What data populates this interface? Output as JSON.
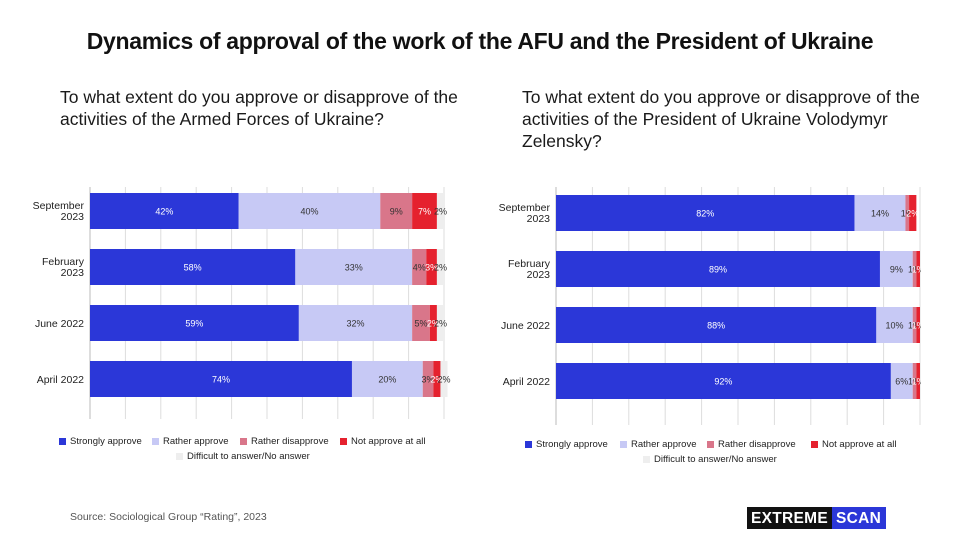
{
  "title": "Dynamics of approval of the work of the AFU and the President of Ukraine",
  "source": "Source: Sociological Group “Rating”, 2023",
  "brand": {
    "part1": "EXTREME",
    "part2": "SCAN"
  },
  "colors": {
    "strongly_approve": "#2b37d8",
    "rather_approve": "#c7c9f5",
    "rather_disapprove": "#d9768a",
    "not_approve": "#e5212e",
    "difficult": "#eeeeee"
  },
  "legend": [
    "Strongly approve",
    "Rather approve",
    "Rather disapprove",
    "Not approve at all",
    "Difficult to answer/No answer"
  ],
  "chart_data": [
    {
      "type": "bar",
      "orientation": "horizontal-stacked",
      "title": "To what extent do you approve or disapprove of the activities of the Armed Forces of Ukraine?",
      "categories": [
        "September 2023",
        "February 2023",
        "June 2022",
        "April 2022"
      ],
      "series": [
        {
          "name": "Strongly approve",
          "values": [
            42,
            58,
            59,
            74
          ]
        },
        {
          "name": "Rather approve",
          "values": [
            40,
            33,
            32,
            20
          ]
        },
        {
          "name": "Rather disapprove",
          "values": [
            9,
            4,
            5,
            3
          ]
        },
        {
          "name": "Not approve at all",
          "values": [
            7,
            3,
            2,
            2
          ]
        },
        {
          "name": "Difficult to answer/No answer",
          "values": [
            2,
            2,
            2,
            2
          ]
        }
      ],
      "unit": "%",
      "grid": true,
      "legend_position": "bottom"
    },
    {
      "type": "bar",
      "orientation": "horizontal-stacked",
      "title": "To what extent do you approve or disapprove of the activities of the President of Ukraine Volodymyr Zelensky?",
      "categories": [
        "September 2023",
        "February 2023",
        "June 2022",
        "April 2022"
      ],
      "series": [
        {
          "name": "Strongly approve",
          "values": [
            82,
            89,
            88,
            92
          ]
        },
        {
          "name": "Rather approve",
          "values": [
            14,
            9,
            10,
            6
          ]
        },
        {
          "name": "Rather disapprove",
          "values": [
            1,
            1,
            1,
            1
          ]
        },
        {
          "name": "Not approve at all",
          "values": [
            2,
            1,
            1,
            1
          ]
        },
        {
          "name": "Difficult to answer/No answer",
          "values": [
            0,
            0,
            0,
            0
          ]
        }
      ],
      "unit": "%",
      "grid": true,
      "legend_position": "bottom"
    }
  ]
}
